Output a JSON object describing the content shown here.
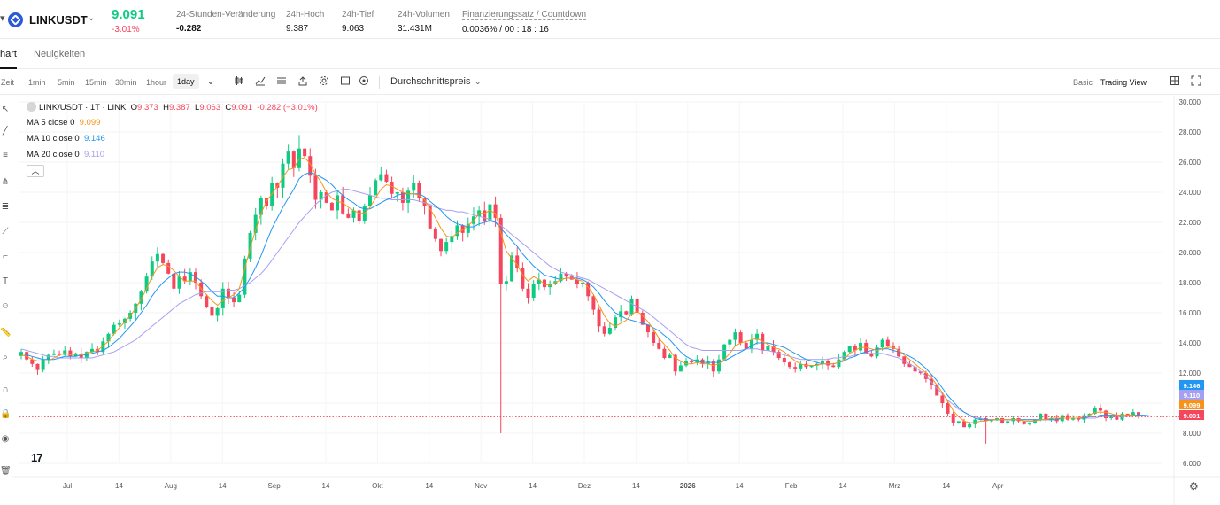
{
  "ticker": {
    "symbol": "LINKUSDT",
    "last_price": "9.091",
    "change_pct": "-3.01%",
    "stats": [
      {
        "label": "24-Stunden-Veränderung",
        "value": "-0.282"
      },
      {
        "label": "24h-Hoch",
        "value": "9.387"
      },
      {
        "label": "24h-Tief",
        "value": "9.063"
      },
      {
        "label": "24h-Volumen",
        "value": "31.431M"
      },
      {
        "label": "Finanzierungssatz / Countdown",
        "value": "0.0036% / 00 : 18 : 16"
      }
    ]
  },
  "tabs": [
    "hart",
    "Neuigkeiten"
  ],
  "toolbar": {
    "timeframes": [
      "Zeit",
      "1min",
      "5min",
      "15min",
      "30min",
      "1hour",
      "1day"
    ],
    "active_timeframe": "1day",
    "price_type": "Durchschnittspreis",
    "views": [
      "Basic",
      "Trading View"
    ],
    "icons": [
      "candlestick-icon",
      "indicator-icon",
      "list-icon",
      "share-icon",
      "gear-icon",
      "square-icon",
      "refresh-icon",
      "layout-icon",
      "fullscreen-icon"
    ]
  },
  "legend": {
    "title": "LINK/USDT · 1T · LINK",
    "ohlc": {
      "o_label": "O",
      "o": "9.373",
      "h_label": "H",
      "h": "9.387",
      "l_label": "L",
      "l": "9.063",
      "c_label": "C",
      "c": "9.091",
      "chg": "-0.282 (−3,01%)"
    },
    "ma": [
      {
        "label": "MA 5 close 0",
        "value": "9.099",
        "color": "#f7931a"
      },
      {
        "label": "MA 10 close 0",
        "value": "9.146",
        "color": "#2196f3"
      },
      {
        "label": "MA 20 close 0",
        "value": "9.110",
        "color": "#a59ff0"
      }
    ]
  },
  "chart_data": {
    "type": "candlestick",
    "y_axis": {
      "min": 6,
      "max": 30,
      "ticks": [
        "30.000",
        "28.000",
        "26.000",
        "24.000",
        "22.000",
        "20.000",
        "18.000",
        "16.000",
        "14.000",
        "12.000",
        "10.000",
        "8.000",
        "6.000"
      ]
    },
    "x_axis": {
      "ticks": [
        "Jul",
        "14",
        "Aug",
        "14",
        "Sep",
        "14",
        "Okt",
        "14",
        "Nov",
        "14",
        "Dez",
        "14",
        "2026",
        "14",
        "Feb",
        "14",
        "Mrz",
        "14",
        "Apr"
      ]
    },
    "price_labels": [
      {
        "text": "9.146",
        "value": 9.146,
        "color": "#2196f3"
      },
      {
        "text": "9.110",
        "value": 9.11,
        "color": "#a59ff0"
      },
      {
        "text": "9.099",
        "value": 9.099,
        "color": "#f7931a"
      },
      {
        "text": "9.091",
        "value": 9.091,
        "color": "#f6465d"
      }
    ],
    "last_price_line": 9.091,
    "up_color": "#0ecb81",
    "down_color": "#f6465d",
    "closes": [
      13.4,
      12.9,
      12.6,
      12.2,
      12.9,
      13.2,
      13.3,
      13.2,
      13.5,
      13.1,
      13.3,
      13.0,
      13.4,
      13.6,
      13.4,
      14.1,
      14.6,
      15.2,
      15.3,
      15.6,
      16.0,
      16.6,
      17.4,
      18.4,
      19.4,
      19.9,
      19.3,
      18.6,
      17.6,
      18.4,
      18.1,
      18.7,
      18.0,
      17.1,
      16.4,
      15.8,
      16.3,
      17.6,
      17.0,
      16.7,
      17.2,
      19.6,
      21.3,
      22.5,
      23.6,
      23.1,
      24.6,
      24.3,
      25.9,
      26.7,
      25.6,
      26.9,
      26.4,
      25.1,
      23.5,
      24.0,
      23.3,
      22.8,
      23.8,
      22.6,
      22.3,
      22.8,
      22.1,
      23.1,
      23.8,
      24.8,
      25.2,
      24.7,
      23.9,
      24.0,
      23.3,
      24.1,
      24.6,
      23.6,
      23.1,
      21.6,
      20.9,
      20.1,
      20.7,
      21.1,
      21.8,
      21.3,
      21.9,
      22.4,
      22.8,
      22.1,
      23.2,
      22.3,
      17.9,
      18.1,
      19.8,
      19.0,
      17.6,
      17.0,
      17.9,
      18.2,
      17.7,
      17.9,
      18.1,
      18.6,
      18.4,
      18.2,
      17.9,
      18.0,
      17.1,
      16.2,
      15.1,
      14.6,
      15.0,
      15.7,
      16.1,
      15.9,
      16.9,
      16.0,
      15.2,
      14.7,
      14.0,
      13.6,
      13.0,
      13.2,
      12.1,
      12.5,
      12.8,
      12.7,
      12.9,
      12.6,
      12.8,
      12.1,
      12.9,
      13.9,
      14.2,
      14.7,
      14.0,
      13.6,
      14.2,
      14.6,
      13.5,
      13.8,
      13.4,
      13.0,
      12.7,
      12.4,
      12.3,
      12.6,
      12.4,
      12.5,
      12.6,
      12.8,
      12.5,
      12.4,
      12.9,
      13.4,
      13.8,
      13.5,
      14.0,
      13.3,
      13.1,
      13.7,
      14.2,
      13.8,
      13.6,
      13.1,
      12.6,
      12.4,
      12.1,
      12.0,
      11.6,
      11.2,
      10.5,
      10.0,
      9.3,
      8.7,
      8.8,
      8.4,
      8.6,
      8.9,
      9.0,
      8.8,
      8.9,
      9.0,
      8.7,
      8.8,
      9.0,
      8.8,
      8.6,
      8.7,
      8.9,
      9.3,
      8.9,
      9.0,
      8.8,
      9.2,
      8.9,
      9.0,
      8.9,
      9.2,
      9.3,
      9.7,
      9.5,
      9.0,
      9.2,
      8.9,
      9.3,
      9.2,
      9.4,
      9.1
    ],
    "ma5": [
      13.2,
      13.1,
      12.9,
      12.8,
      12.8,
      12.8,
      13.0,
      13.2,
      13.3,
      13.2,
      13.3,
      13.2,
      13.3,
      13.4,
      13.5,
      13.8,
      14.1,
      14.6,
      15.0,
      15.4,
      15.8,
      16.3,
      16.9,
      17.6,
      18.4,
      19.0,
      19.2,
      19.1,
      18.8,
      18.4,
      18.1,
      18.1,
      18.1,
      17.6,
      17.2,
      16.8,
      16.5,
      16.8,
      17.0,
      17.2,
      17.6,
      18.9,
      20.3,
      21.5,
      22.6,
      23.4,
      23.9,
      24.4,
      25.0,
      25.5,
      25.6,
      26.2,
      26.3,
      25.9,
      25.2,
      24.7,
      24.0,
      23.6,
      23.4,
      23.3,
      23.0,
      22.8,
      22.6,
      22.6,
      23.0,
      23.6,
      24.2,
      24.5,
      24.4,
      24.2,
      24.0,
      23.9,
      23.9,
      23.8,
      23.5,
      22.9,
      22.3,
      21.6,
      21.1,
      21.0,
      21.3,
      21.5,
      21.8,
      22.1,
      22.6,
      22.6,
      22.8,
      22.6,
      21.3,
      20.1,
      19.6,
      19.2,
      18.5,
      18.1,
      18.4,
      18.2,
      17.9,
      17.8,
      18.0,
      18.2,
      18.3,
      18.3,
      18.2,
      18.1,
      17.7,
      17.2,
      16.5,
      15.8,
      15.3,
      15.1,
      15.3,
      15.5,
      15.9,
      16.1,
      15.8,
      15.4,
      14.9,
      14.3,
      13.9,
      13.5,
      13.0,
      12.8,
      12.6,
      12.6,
      12.7,
      12.6,
      12.6,
      12.5,
      12.6,
      12.9,
      13.3,
      13.8,
      14.0,
      14.1,
      14.2,
      14.3,
      14.1,
      13.9,
      13.7,
      13.6,
      13.4,
      13.1,
      12.8,
      12.6,
      12.5,
      12.5,
      12.5,
      12.6,
      12.6,
      12.6,
      12.7,
      12.9,
      13.3,
      13.5,
      13.7,
      13.7,
      13.6,
      13.5,
      13.6,
      13.7,
      13.7,
      13.5,
      13.2,
      12.9,
      12.6,
      12.3,
      12.0,
      11.7,
      11.2,
      10.7,
      10.1,
      9.5,
      9.1,
      8.8,
      8.7,
      8.7,
      8.8,
      8.8,
      8.9,
      8.9,
      8.9,
      8.9,
      8.9,
      8.9,
      8.8,
      8.8,
      8.8,
      8.9,
      8.9,
      9.0,
      9.0,
      9.0,
      9.0,
      9.0,
      9.0,
      9.1,
      9.2,
      9.4,
      9.4,
      9.4,
      9.3,
      9.2,
      9.2,
      9.2,
      9.2,
      9.1
    ],
    "ma10": [
      13.3,
      13.2,
      13.1,
      13.0,
      12.9,
      12.9,
      12.9,
      13.0,
      13.1,
      13.1,
      13.1,
      13.2,
      13.2,
      13.3,
      13.4,
      13.5,
      13.7,
      14.0,
      14.3,
      14.7,
      15.1,
      15.5,
      16.0,
      16.5,
      17.1,
      17.6,
      18.0,
      18.3,
      18.6,
      18.7,
      18.7,
      18.6,
      18.4,
      18.1,
      17.8,
      17.4,
      17.1,
      17.1,
      17.0,
      17.0,
      17.3,
      17.7,
      18.3,
      19.0,
      19.8,
      20.7,
      21.6,
      22.3,
      23.0,
      23.6,
      24.2,
      24.9,
      25.2,
      25.3,
      25.2,
      25.0,
      24.8,
      24.5,
      24.1,
      23.8,
      23.5,
      23.3,
      23.0,
      22.9,
      22.9,
      23.1,
      23.3,
      23.5,
      23.6,
      23.8,
      23.9,
      23.9,
      23.9,
      23.9,
      23.7,
      23.4,
      23.1,
      22.8,
      22.4,
      22.1,
      21.9,
      21.8,
      21.7,
      21.7,
      21.9,
      22.0,
      22.1,
      22.0,
      21.6,
      21.2,
      20.8,
      20.4,
      19.9,
      19.5,
      19.1,
      18.8,
      18.5,
      18.4,
      18.3,
      18.2,
      18.3,
      18.3,
      18.3,
      18.2,
      18.0,
      17.7,
      17.3,
      16.8,
      16.4,
      16.0,
      15.8,
      15.6,
      15.5,
      15.4,
      15.3,
      15.2,
      15.0,
      14.8,
      14.5,
      14.2,
      13.8,
      13.4,
      13.1,
      12.9,
      12.8,
      12.7,
      12.7,
      12.7,
      12.7,
      12.8,
      13.0,
      13.2,
      13.4,
      13.6,
      13.8,
      14.0,
      14.0,
      14.0,
      13.9,
      13.8,
      13.7,
      13.5,
      13.3,
      13.1,
      12.9,
      12.8,
      12.7,
      12.6,
      12.6,
      12.6,
      12.7,
      12.8,
      13.0,
      13.1,
      13.3,
      13.4,
      13.5,
      13.6,
      13.6,
      13.6,
      13.5,
      13.4,
      13.3,
      13.1,
      12.9,
      12.6,
      12.3,
      11.9,
      11.5,
      11.0,
      10.5,
      10.1,
      9.7,
      9.4,
      9.2,
      9.0,
      8.9,
      8.9,
      8.9,
      8.9,
      8.9,
      8.9,
      8.9,
      8.9,
      8.9,
      8.9,
      8.9,
      8.9,
      8.9,
      8.9,
      8.9,
      9.0,
      9.0,
      9.0,
      9.0,
      9.0,
      9.1,
      9.1,
      9.2,
      9.2,
      9.2,
      9.2,
      9.2,
      9.2,
      9.2,
      9.2,
      9.2,
      9.15
    ],
    "ma20": [
      13.6,
      13.5,
      13.4,
      13.3,
      13.2,
      13.1,
      13.1,
      13.0,
      13.0,
      13.0,
      13.0,
      13.0,
      13.0,
      13.0,
      13.1,
      13.2,
      13.3,
      13.4,
      13.6,
      13.8,
      14.0,
      14.2,
      14.5,
      14.8,
      15.1,
      15.4,
      15.7,
      16.0,
      16.3,
      16.6,
      16.8,
      17.0,
      17.2,
      17.3,
      17.4,
      17.4,
      17.4,
      17.4,
      17.5,
      17.5,
      17.6,
      17.8,
      18.0,
      18.3,
      18.6,
      19.0,
      19.5,
      20.0,
      20.5,
      21.0,
      21.5,
      22.0,
      22.4,
      22.8,
      23.2,
      23.5,
      23.8,
      24.0,
      24.1,
      24.2,
      24.2,
      24.1,
      24.0,
      23.9,
      23.8,
      23.7,
      23.6,
      23.6,
      23.5,
      23.5,
      23.5,
      23.5,
      23.5,
      23.4,
      23.3,
      23.2,
      23.0,
      22.9,
      22.8,
      22.8,
      22.7,
      22.7,
      22.6,
      22.5,
      22.4,
      22.3,
      22.2,
      22.0,
      21.8,
      21.5,
      21.2,
      20.9,
      20.6,
      20.3,
      20.0,
      19.7,
      19.4,
      19.1,
      18.9,
      18.7,
      18.6,
      18.5,
      18.4,
      18.3,
      18.2,
      18.0,
      17.8,
      17.6,
      17.4,
      17.2,
      17.0,
      16.8,
      16.6,
      16.4,
      16.2,
      16.0,
      15.7,
      15.4,
      15.1,
      14.8,
      14.5,
      14.2,
      13.9,
      13.7,
      13.6,
      13.5,
      13.5,
      13.5,
      13.5,
      13.5,
      13.5,
      13.5,
      13.5,
      13.6,
      13.6,
      13.6,
      13.5,
      13.5,
      13.4,
      13.3,
      13.2,
      13.1,
      13.0,
      12.9,
      12.9,
      12.9,
      12.9,
      12.9,
      12.9,
      13.0,
      13.0,
      13.1,
      13.1,
      13.2,
      13.3,
      13.3,
      13.3,
      13.3,
      13.3,
      13.2,
      13.1,
      13.0,
      12.8,
      12.6,
      12.4,
      12.1,
      11.8,
      11.4,
      11.0,
      10.6,
      10.2,
      9.9,
      9.6,
      9.4,
      9.2,
      9.1,
      9.0,
      8.9,
      8.9,
      8.9,
      8.9,
      8.9,
      8.9,
      8.9,
      8.9,
      8.9,
      8.9,
      8.9,
      8.9,
      8.9,
      8.9,
      9.0,
      9.0,
      9.0,
      9.0,
      9.0,
      9.0,
      9.0,
      9.1,
      9.1,
      9.1,
      9.1,
      9.1,
      9.11
    ]
  }
}
